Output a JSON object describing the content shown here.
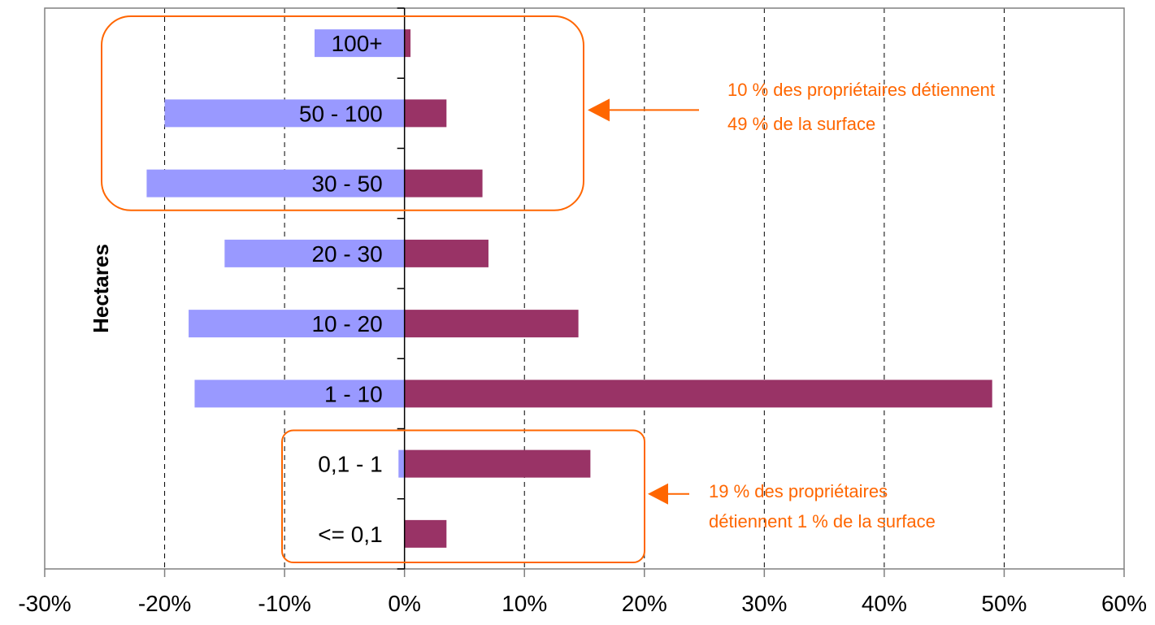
{
  "chart_data": {
    "type": "bar",
    "orientation": "horizontal",
    "categories": [
      "100+",
      "50 - 100",
      "30 - 50",
      "20 - 30",
      "10 - 20",
      "1 - 10",
      "0,1 - 1",
      "<= 0,1"
    ],
    "series": [
      {
        "values": [
          -7.5,
          -20.0,
          -21.5,
          -15.0,
          -18.0,
          -17.5,
          -0.5,
          0.0
        ],
        "color": "#9999ff"
      },
      {
        "values": [
          0.5,
          3.5,
          6.5,
          7.0,
          14.5,
          49.0,
          15.5,
          3.5
        ],
        "color": "#993366"
      }
    ],
    "xlim": [
      -30,
      60
    ],
    "xticks": [
      "-30%",
      "-20%",
      "-10%",
      "0%",
      "10%",
      "20%",
      "30%",
      "40%",
      "50%",
      "60%"
    ],
    "ylabel": "Hectares",
    "grid": "vertical dashed",
    "annotations": [
      {
        "lines": [
          "10 % des propriétaires détiennent",
          "49 % de la surface"
        ],
        "color": "#ff6600"
      },
      {
        "lines": [
          "19 % des propriétaires",
          "détiennent 1 % de la surface"
        ],
        "color": "#ff6600"
      }
    ]
  }
}
